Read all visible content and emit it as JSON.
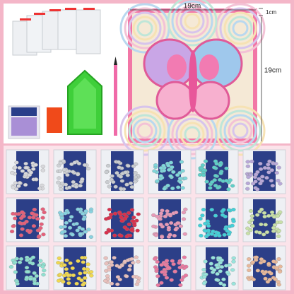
{
  "dimensions": {
    "width": "19cm",
    "depth": "1cm",
    "height": "19cm"
  }
}
